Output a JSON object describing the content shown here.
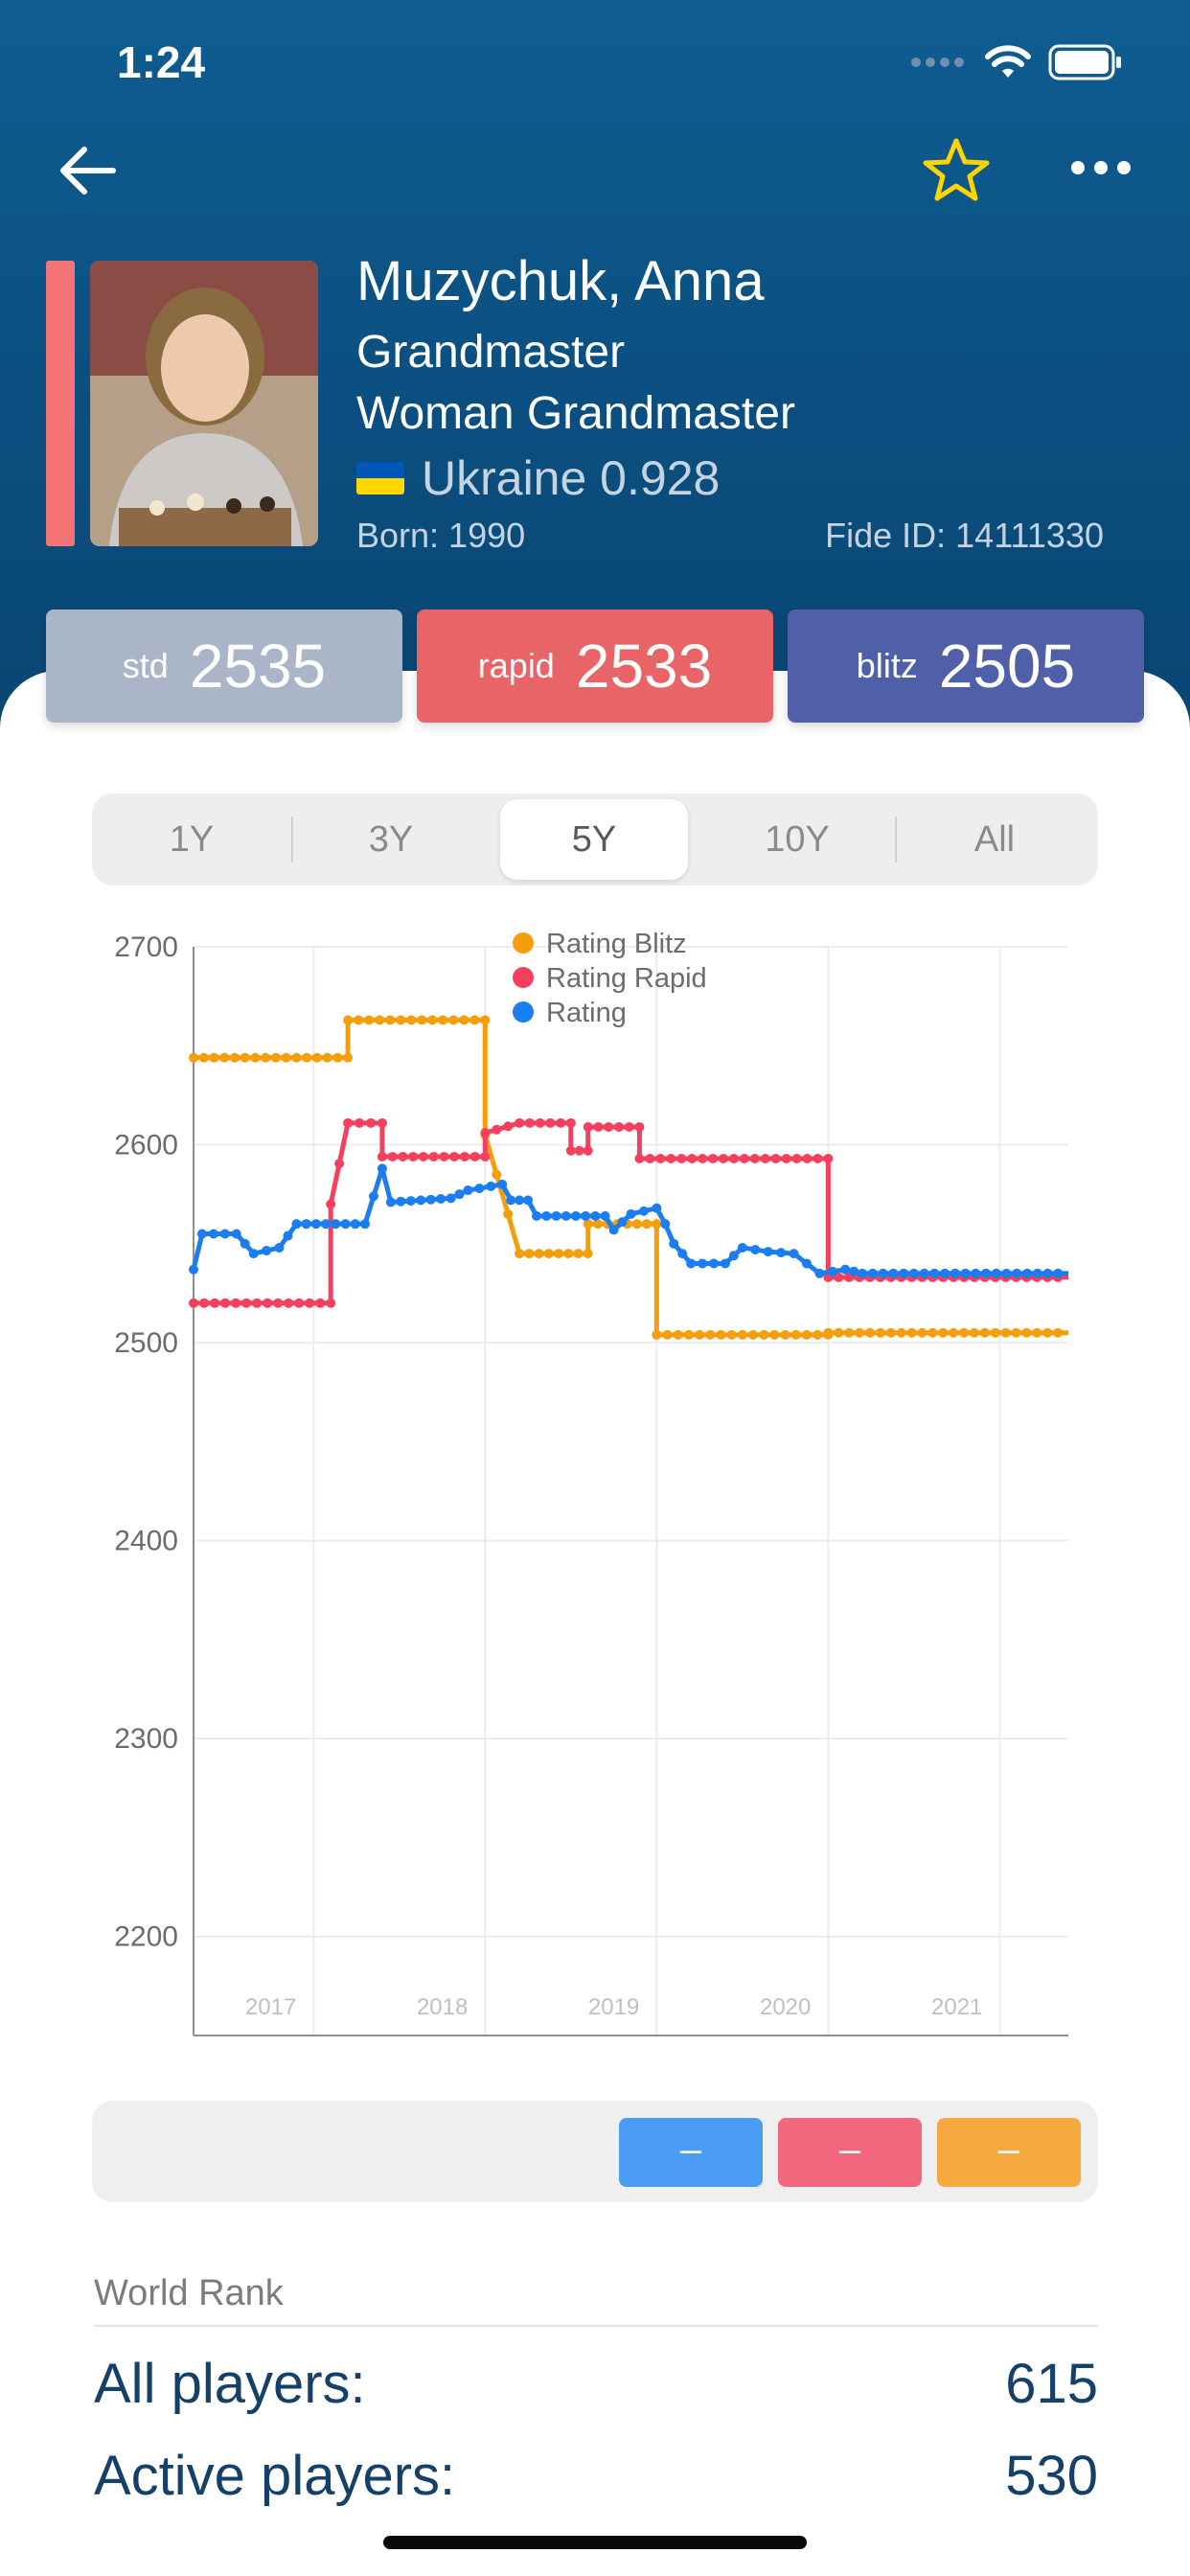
{
  "status_bar": {
    "time": "1:24"
  },
  "profile": {
    "name": "Muzychuk, Anna",
    "titles": [
      "Grandmaster",
      "Woman Grandmaster"
    ],
    "country": "Ukraine 0.928",
    "born": "Born: 1990",
    "fide_id": "Fide ID: 14111330"
  },
  "ratings": [
    {
      "label": "std",
      "value": "2535",
      "color": "#aab6c8"
    },
    {
      "label": "rapid",
      "value": "2533",
      "color": "#e96466"
    },
    {
      "label": "blitz",
      "value": "2505",
      "color": "#4f5fa8"
    }
  ],
  "periods": [
    "1Y",
    "3Y",
    "5Y",
    "10Y",
    "All"
  ],
  "selected_period": "5Y",
  "chart_data": {
    "type": "line",
    "x_range": [
      2016.3,
      2021.4
    ],
    "ylim": [
      2150,
      2700
    ],
    "yticks": [
      2200,
      2300,
      2400,
      2500,
      2600,
      2700
    ],
    "xticks": [
      "2017",
      "2018",
      "2019",
      "2020",
      "2021"
    ],
    "legend_position": "top-center",
    "grid": true,
    "series": [
      {
        "name": "Rating Blitz",
        "color": "#f59e0b",
        "points": [
          [
            2016.3,
            2644
          ],
          [
            2017.2,
            2644
          ],
          [
            2017.2,
            2663
          ],
          [
            2018.0,
            2663
          ],
          [
            2018.0,
            2605
          ],
          [
            2018.2,
            2545
          ],
          [
            2018.6,
            2545
          ],
          [
            2018.6,
            2560
          ],
          [
            2019.0,
            2560
          ],
          [
            2019.0,
            2504
          ],
          [
            2020.0,
            2504
          ],
          [
            2020.0,
            2505
          ],
          [
            2021.4,
            2505
          ]
        ]
      },
      {
        "name": "Rating Rapid",
        "color": "#f43f5e",
        "points": [
          [
            2016.3,
            2520
          ],
          [
            2017.1,
            2520
          ],
          [
            2017.1,
            2570
          ],
          [
            2017.2,
            2611
          ],
          [
            2017.4,
            2611
          ],
          [
            2017.4,
            2594
          ],
          [
            2018.0,
            2594
          ],
          [
            2018.0,
            2606
          ],
          [
            2018.2,
            2611
          ],
          [
            2018.5,
            2611
          ],
          [
            2018.5,
            2597
          ],
          [
            2018.6,
            2597
          ],
          [
            2018.6,
            2609
          ],
          [
            2018.9,
            2609
          ],
          [
            2018.9,
            2593
          ],
          [
            2020.0,
            2593
          ],
          [
            2020.0,
            2533
          ],
          [
            2021.4,
            2533
          ]
        ]
      },
      {
        "name": "Rating",
        "color": "#1a7df0",
        "points": [
          [
            2016.3,
            2537
          ],
          [
            2016.35,
            2555
          ],
          [
            2016.55,
            2555
          ],
          [
            2016.65,
            2545
          ],
          [
            2016.8,
            2548
          ],
          [
            2016.9,
            2560
          ],
          [
            2017.3,
            2560
          ],
          [
            2017.4,
            2588
          ],
          [
            2017.45,
            2571
          ],
          [
            2017.8,
            2573
          ],
          [
            2017.9,
            2577
          ],
          [
            2018.1,
            2580
          ],
          [
            2018.15,
            2572
          ],
          [
            2018.25,
            2572
          ],
          [
            2018.3,
            2564
          ],
          [
            2018.7,
            2564
          ],
          [
            2018.75,
            2557
          ],
          [
            2018.85,
            2565
          ],
          [
            2019.0,
            2568
          ],
          [
            2019.05,
            2560
          ],
          [
            2019.1,
            2550
          ],
          [
            2019.2,
            2540
          ],
          [
            2019.4,
            2540
          ],
          [
            2019.5,
            2548
          ],
          [
            2019.65,
            2546
          ],
          [
            2019.8,
            2545
          ],
          [
            2019.95,
            2535
          ],
          [
            2020.1,
            2537
          ],
          [
            2020.2,
            2535
          ],
          [
            2021.4,
            2535
          ]
        ]
      }
    ]
  },
  "legend_panel": {
    "buttons": [
      {
        "label": "–",
        "color": "#4a9cf4"
      },
      {
        "label": "–",
        "color": "#f3677e"
      },
      {
        "label": "–",
        "color": "#f5a93e"
      }
    ]
  },
  "world_rank": {
    "heading": "World Rank",
    "rows": [
      {
        "label": "All players:",
        "value": "615"
      },
      {
        "label": "Active players:",
        "value": "530"
      }
    ]
  }
}
